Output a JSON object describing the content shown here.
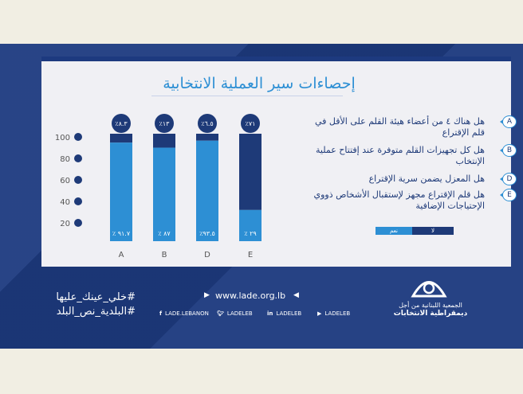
{
  "title": "إحصاءات سير العملية الانتخابية",
  "chart_data": {
    "type": "bar",
    "categories": [
      "A",
      "B",
      "D",
      "E"
    ],
    "series": [
      {
        "values": [
          91.7,
          87,
          93.5,
          29
        ]
      },
      {
        "values": [
          8.3,
          13,
          6.5,
          71
        ]
      }
    ],
    "stacked": true,
    "ylim": [
      0,
      100
    ],
    "yticks": [
      "20",
      "40",
      "60",
      "80",
      "100"
    ],
    "bottom_labels": [
      "٪ ٩١.٧",
      "٪ ٨٧",
      "٪٩٣.٥",
      "٪ ٢٩"
    ],
    "top_labels": [
      "٪٨.٣",
      "٪١٣",
      "٪٦.٥",
      "٪٧١"
    ],
    "colors": {
      "yes": "#2d8fd4",
      "no": "#1e3a78"
    }
  },
  "questions": [
    {
      "letter": "A",
      "text": "هل هناك ٤ من أعضاء هيئة القلم على الأقل في قلم الإقتراع"
    },
    {
      "letter": "B",
      "text": "هل كل تجهيزات القلم متوفرة عند إفتتاح عملية الإنتخاب"
    },
    {
      "letter": "D",
      "text": "هل المعزل يضمن سرية الإقتراع"
    },
    {
      "letter": "E",
      "text": "هل قلم الإقتراع مجهز لإستقبال الأشخاص ذووي الإحتياجات الإضافية"
    }
  ],
  "legend": {
    "yes": "نعم",
    "no": "لا"
  },
  "footer": {
    "hashtag1": "#خلي_عينك_عليها",
    "hashtag2": "#البلدية_نص_البلد",
    "url": "www.lade.org.lb",
    "facebook": "LADE.LEBANON",
    "twitter": "LADELEB",
    "linkedin": "LADELEB",
    "youtube": "LADELEB",
    "org_line1": "الجمعية اللبنانية من أجل",
    "org_line2": "ديمقراطية الانتخابات"
  }
}
